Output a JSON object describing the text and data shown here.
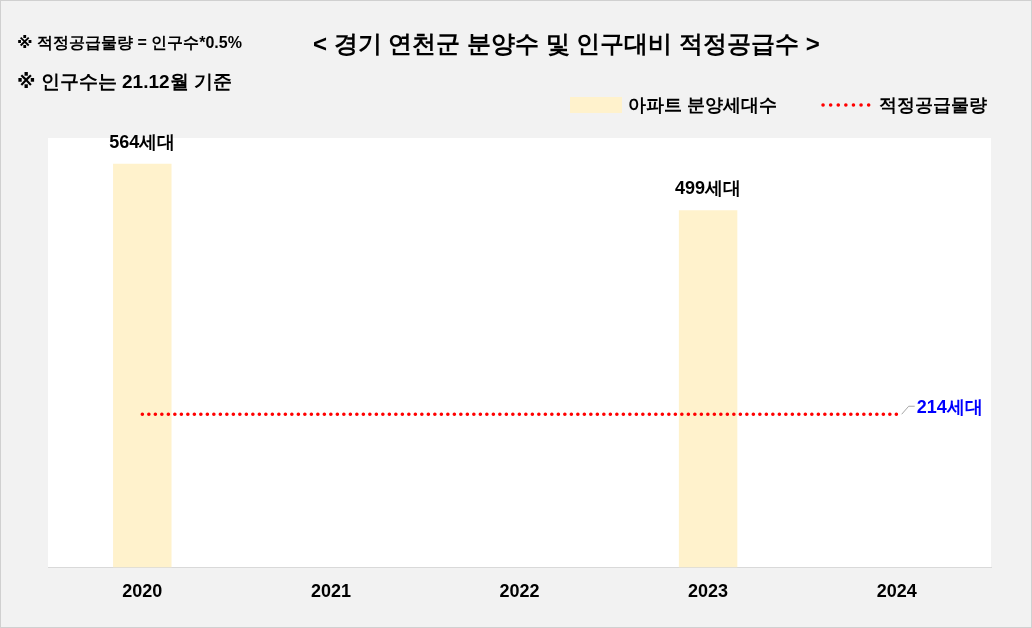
{
  "chart_data": {
    "type": "bar",
    "title": "< 경기 연천군 분양수 및 인구대비 적정공급수 >",
    "annotations": [
      "※ 적정공급물량 = 인구수*0.5%",
      "※ 인구수는 21.12월 기준"
    ],
    "categories": [
      "2020",
      "2021",
      "2022",
      "2023",
      "2024"
    ],
    "series": [
      {
        "name": "아파트 분양세대수",
        "color": "#fff2cc",
        "values": [
          564,
          null,
          null,
          499,
          null
        ],
        "value_labels": [
          "564세대",
          null,
          null,
          "499세대",
          null
        ]
      },
      {
        "name": "적정공급물량",
        "type": "line",
        "color": "#ff0000",
        "line_style": "dotted",
        "values": [
          214,
          214,
          214,
          214,
          214
        ],
        "value_labels": [
          null,
          null,
          null,
          null,
          "214세대"
        ]
      }
    ],
    "ylim": [
      0,
      600
    ],
    "tick_labels": "x",
    "legend": "top right",
    "grid": false
  }
}
